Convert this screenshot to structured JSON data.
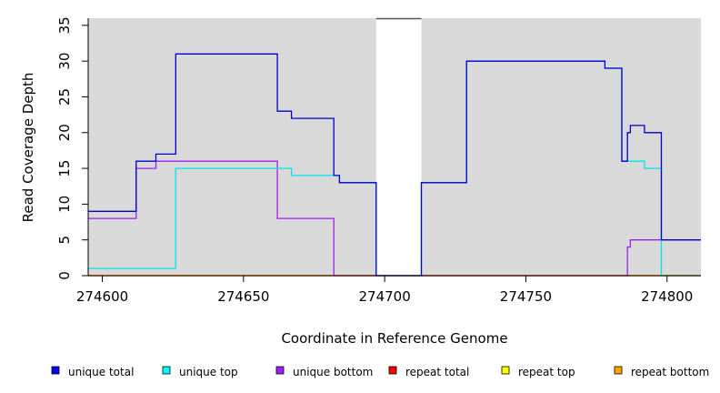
{
  "chart_data": {
    "type": "line",
    "step": true,
    "xlabel": "Coordinate in Reference Genome",
    "ylabel": "Read Coverage Depth",
    "xlim": [
      274595,
      274812
    ],
    "ylim": [
      0,
      36
    ],
    "xticks": [
      274600,
      274650,
      274700,
      274750,
      274800
    ],
    "yticks": [
      0,
      5,
      10,
      15,
      20,
      25,
      30,
      35
    ],
    "background": "#d9d9d9",
    "gap_region": [
      274697,
      274713
    ],
    "series": [
      {
        "name": "unique total",
        "color": "#0000cc",
        "points": [
          [
            274595,
            9
          ],
          [
            274612,
            9
          ],
          [
            274612,
            16
          ],
          [
            274619,
            16
          ],
          [
            274619,
            17
          ],
          [
            274626,
            17
          ],
          [
            274626,
            31
          ],
          [
            274662,
            31
          ],
          [
            274662,
            23
          ],
          [
            274667,
            23
          ],
          [
            274667,
            22
          ],
          [
            274682,
            22
          ],
          [
            274682,
            14
          ],
          [
            274684,
            14
          ],
          [
            274684,
            13
          ],
          [
            274697,
            13
          ],
          [
            274697,
            0
          ],
          [
            274713,
            0
          ],
          [
            274713,
            13
          ],
          [
            274729,
            13
          ],
          [
            274729,
            30
          ],
          [
            274778,
            30
          ],
          [
            274778,
            29
          ],
          [
            274784,
            29
          ],
          [
            274784,
            16
          ],
          [
            274786,
            16
          ],
          [
            274786,
            20
          ],
          [
            274787,
            20
          ],
          [
            274787,
            21
          ],
          [
            274792,
            21
          ],
          [
            274792,
            20
          ],
          [
            274798,
            20
          ],
          [
            274798,
            5
          ],
          [
            274812,
            5
          ]
        ]
      },
      {
        "name": "unique top",
        "color": "#00e5e5",
        "points": [
          [
            274595,
            1
          ],
          [
            274626,
            1
          ],
          [
            274626,
            15
          ],
          [
            274667,
            15
          ],
          [
            274667,
            14
          ],
          [
            274684,
            14
          ],
          [
            274684,
            13
          ],
          [
            274697,
            13
          ],
          [
            274697,
            0
          ],
          [
            274713,
            0
          ],
          [
            274713,
            13
          ],
          [
            274729,
            13
          ],
          [
            274729,
            30
          ],
          [
            274778,
            30
          ],
          [
            274778,
            29
          ],
          [
            274784,
            29
          ],
          [
            274784,
            16
          ],
          [
            274792,
            16
          ],
          [
            274792,
            15
          ],
          [
            274798,
            15
          ],
          [
            274798,
            0
          ],
          [
            274812,
            0
          ]
        ]
      },
      {
        "name": "unique bottom",
        "color": "#a020f0",
        "points": [
          [
            274595,
            8
          ],
          [
            274612,
            8
          ],
          [
            274612,
            15
          ],
          [
            274619,
            15
          ],
          [
            274619,
            16
          ],
          [
            274662,
            16
          ],
          [
            274662,
            8
          ],
          [
            274682,
            8
          ],
          [
            274682,
            0
          ],
          [
            274786,
            0
          ],
          [
            274786,
            4
          ],
          [
            274787,
            4
          ],
          [
            274787,
            5
          ],
          [
            274812,
            5
          ]
        ]
      },
      {
        "name": "repeat total",
        "color": "#ee0000",
        "points": [
          [
            274595,
            0
          ],
          [
            274812,
            0
          ]
        ]
      },
      {
        "name": "repeat top",
        "color": "#ffff00",
        "points": [
          [
            274595,
            0
          ],
          [
            274812,
            0
          ]
        ]
      },
      {
        "name": "repeat bottom",
        "color": "#ffa500",
        "points": [
          [
            274595,
            0
          ],
          [
            274812,
            0
          ]
        ]
      }
    ],
    "legend": [
      {
        "label": "unique total",
        "color": "#0000ff"
      },
      {
        "label": "unique top",
        "color": "#00ffff"
      },
      {
        "label": "unique bottom",
        "color": "#a020f0"
      },
      {
        "label": "repeat total",
        "color": "#ff0000"
      },
      {
        "label": "repeat top",
        "color": "#ffff00"
      },
      {
        "label": "repeat bottom",
        "color": "#ffa500"
      }
    ]
  }
}
